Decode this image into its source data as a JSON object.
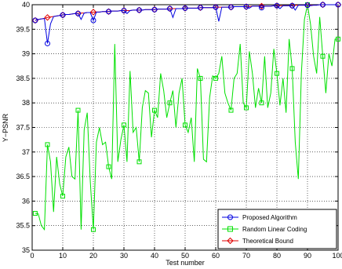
{
  "chart_data": {
    "type": "line",
    "title": "",
    "xlabel": "Test number",
    "ylabel": "Y−PSNR",
    "xlim": [
      0,
      100
    ],
    "ylim": [
      35,
      40
    ],
    "x_ticks": [
      0,
      10,
      20,
      30,
      40,
      50,
      60,
      70,
      80,
      90,
      100
    ],
    "y_ticks": [
      35,
      35.5,
      36,
      36.5,
      37,
      37.5,
      38,
      38.5,
      39,
      39.5,
      40
    ],
    "x_tick_labels": [
      "0",
      "10",
      "20",
      "30",
      "40",
      "50",
      "60",
      "70",
      "80",
      "90",
      "100"
    ],
    "y_tick_labels": [
      "35",
      "35.5",
      "36",
      "36.5",
      "37",
      "37.5",
      "38",
      "38.5",
      "39",
      "39.5",
      "40"
    ],
    "grid": true,
    "legend_position": "bottom-right",
    "series": [
      {
        "name": "Theoretical Bound",
        "color": "#e00000",
        "marker": "diamond",
        "marker_every": 5,
        "x": [
          1,
          2,
          3,
          4,
          5,
          6,
          7,
          8,
          9,
          10,
          11,
          12,
          13,
          14,
          15,
          16,
          17,
          18,
          19,
          20,
          21,
          22,
          23,
          24,
          25,
          26,
          27,
          28,
          29,
          30,
          31,
          32,
          33,
          34,
          35,
          36,
          37,
          38,
          39,
          40,
          41,
          42,
          43,
          44,
          45,
          46,
          47,
          48,
          49,
          50,
          51,
          52,
          53,
          54,
          55,
          56,
          57,
          58,
          59,
          60,
          61,
          62,
          63,
          64,
          65,
          66,
          67,
          68,
          69,
          70,
          71,
          72,
          73,
          74,
          75,
          76,
          77,
          78,
          79,
          80,
          81,
          82,
          83,
          84,
          85,
          86,
          87,
          88,
          89,
          90,
          91,
          92,
          93,
          94,
          95,
          96,
          97,
          98,
          99,
          100
        ],
        "values": [
          39.68,
          39.7,
          39.71,
          39.72,
          39.74,
          39.75,
          39.76,
          39.77,
          39.78,
          39.79,
          39.8,
          39.8,
          39.81,
          39.82,
          39.82,
          39.83,
          39.83,
          39.84,
          39.84,
          39.85,
          39.85,
          39.85,
          39.86,
          39.86,
          39.86,
          39.87,
          39.87,
          39.87,
          39.88,
          39.88,
          39.88,
          39.88,
          39.89,
          39.89,
          39.89,
          39.89,
          39.9,
          39.9,
          39.9,
          39.9,
          39.91,
          39.91,
          39.91,
          39.91,
          39.92,
          39.92,
          39.92,
          39.92,
          39.92,
          39.93,
          39.93,
          39.93,
          39.93,
          39.93,
          39.94,
          39.94,
          39.94,
          39.94,
          39.94,
          39.95,
          39.95,
          39.95,
          39.95,
          39.95,
          39.95,
          39.96,
          39.96,
          39.96,
          39.96,
          39.96,
          39.96,
          39.97,
          39.97,
          39.97,
          39.97,
          39.97,
          39.97,
          39.97,
          39.98,
          39.98,
          39.98,
          39.98,
          39.98,
          39.98,
          39.98,
          39.99,
          39.99,
          39.99,
          39.99,
          39.99,
          39.99,
          39.99,
          39.99,
          40.0,
          40.0,
          40.0,
          40.0,
          40.0,
          40.0,
          40.0
        ]
      },
      {
        "name": "Proposed Algorithm",
        "color": "#0000e0",
        "marker": "circle",
        "marker_every": 5,
        "x": [
          1,
          2,
          3,
          4,
          5,
          6,
          7,
          8,
          9,
          10,
          11,
          12,
          13,
          14,
          15,
          16,
          17,
          18,
          19,
          20,
          21,
          22,
          23,
          24,
          25,
          26,
          27,
          28,
          29,
          30,
          31,
          32,
          33,
          34,
          35,
          36,
          37,
          38,
          39,
          40,
          41,
          42,
          43,
          44,
          45,
          46,
          47,
          48,
          49,
          50,
          51,
          52,
          53,
          54,
          55,
          56,
          57,
          58,
          59,
          60,
          61,
          62,
          63,
          64,
          65,
          66,
          67,
          68,
          69,
          70,
          71,
          72,
          73,
          74,
          75,
          76,
          77,
          78,
          79,
          80,
          81,
          82,
          83,
          84,
          85,
          86,
          87,
          88,
          89,
          90,
          91,
          92,
          93,
          94,
          95,
          96,
          97,
          98,
          99,
          100
        ],
        "values": [
          39.68,
          39.7,
          39.71,
          39.72,
          39.21,
          39.61,
          39.76,
          39.77,
          39.78,
          39.79,
          39.8,
          39.8,
          39.81,
          39.82,
          39.82,
          39.7,
          39.83,
          39.84,
          39.84,
          39.68,
          39.85,
          39.85,
          39.86,
          39.86,
          39.86,
          39.87,
          39.87,
          39.87,
          39.88,
          39.88,
          39.82,
          39.88,
          39.89,
          39.89,
          39.89,
          39.89,
          39.9,
          39.9,
          39.9,
          39.9,
          39.91,
          39.91,
          39.91,
          39.91,
          39.92,
          39.74,
          39.92,
          39.92,
          39.92,
          39.93,
          39.93,
          39.93,
          39.93,
          39.93,
          39.94,
          39.94,
          39.94,
          39.94,
          39.94,
          39.95,
          39.66,
          39.95,
          39.95,
          39.95,
          39.95,
          39.96,
          39.96,
          39.96,
          39.96,
          39.96,
          39.93,
          39.97,
          39.97,
          39.97,
          39.94,
          39.97,
          39.97,
          39.97,
          39.98,
          39.98,
          39.92,
          39.98,
          39.98,
          39.98,
          39.98,
          39.89,
          39.99,
          39.99,
          39.99,
          39.99,
          39.98,
          39.99,
          39.99,
          40.0,
          40.0,
          40.0,
          40.0,
          40.0,
          40.0,
          40.0
        ]
      },
      {
        "name": "Random Linear Coding",
        "color": "#00e000",
        "marker": "square",
        "marker_every": 5,
        "x": [
          1,
          2,
          3,
          4,
          5,
          6,
          7,
          8,
          9,
          10,
          11,
          12,
          13,
          14,
          15,
          16,
          17,
          18,
          19,
          20,
          21,
          22,
          23,
          24,
          25,
          26,
          27,
          28,
          29,
          30,
          31,
          32,
          33,
          34,
          35,
          36,
          37,
          38,
          39,
          40,
          41,
          42,
          43,
          44,
          45,
          46,
          47,
          48,
          49,
          50,
          51,
          52,
          53,
          54,
          55,
          56,
          57,
          58,
          59,
          60,
          61,
          62,
          63,
          64,
          65,
          66,
          67,
          68,
          69,
          70,
          71,
          72,
          73,
          74,
          75,
          76,
          77,
          78,
          79,
          80,
          81,
          82,
          83,
          84,
          85,
          86,
          87,
          88,
          89,
          90,
          91,
          92,
          93,
          94,
          95,
          96,
          97,
          98,
          99,
          100
        ],
        "values": [
          35.75,
          35.74,
          35.5,
          35.42,
          37.15,
          36.8,
          35.78,
          36.9,
          36.35,
          36.1,
          36.9,
          37.1,
          36.5,
          36.45,
          37.85,
          35.42,
          37.45,
          37.8,
          36.4,
          35.42,
          37.2,
          37.5,
          37.15,
          37.2,
          36.7,
          36.45,
          39.2,
          36.8,
          37.25,
          37.55,
          36.8,
          38.65,
          37.4,
          37.5,
          36.8,
          37.9,
          38.25,
          38.2,
          37.3,
          37.85,
          37.7,
          38.6,
          38.25,
          37.7,
          38.0,
          38.25,
          37.5,
          38.2,
          38.5,
          37.55,
          37.4,
          37.7,
          36.8,
          38.7,
          38.5,
          36.85,
          36.8,
          38.1,
          38.55,
          38.5,
          38.6,
          38.95,
          38.2,
          38.0,
          37.85,
          38.5,
          38.6,
          39.2,
          38.0,
          37.9,
          39.05,
          38.6,
          37.9,
          38.3,
          38.0,
          38.95,
          37.9,
          38.2,
          39.1,
          38.6,
          37.95,
          38.5,
          37.8,
          39.3,
          38.7,
          37.2,
          36.45,
          38.6,
          39.7,
          40.0,
          39.6,
          38.95,
          38.6,
          39.75,
          38.95,
          38.2,
          39.0,
          38.75,
          39.3,
          39.3
        ]
      }
    ]
  },
  "legend": {
    "entries": [
      "Proposed Algorithm",
      "Random Linear Coding",
      "Theoretical Bound"
    ]
  }
}
